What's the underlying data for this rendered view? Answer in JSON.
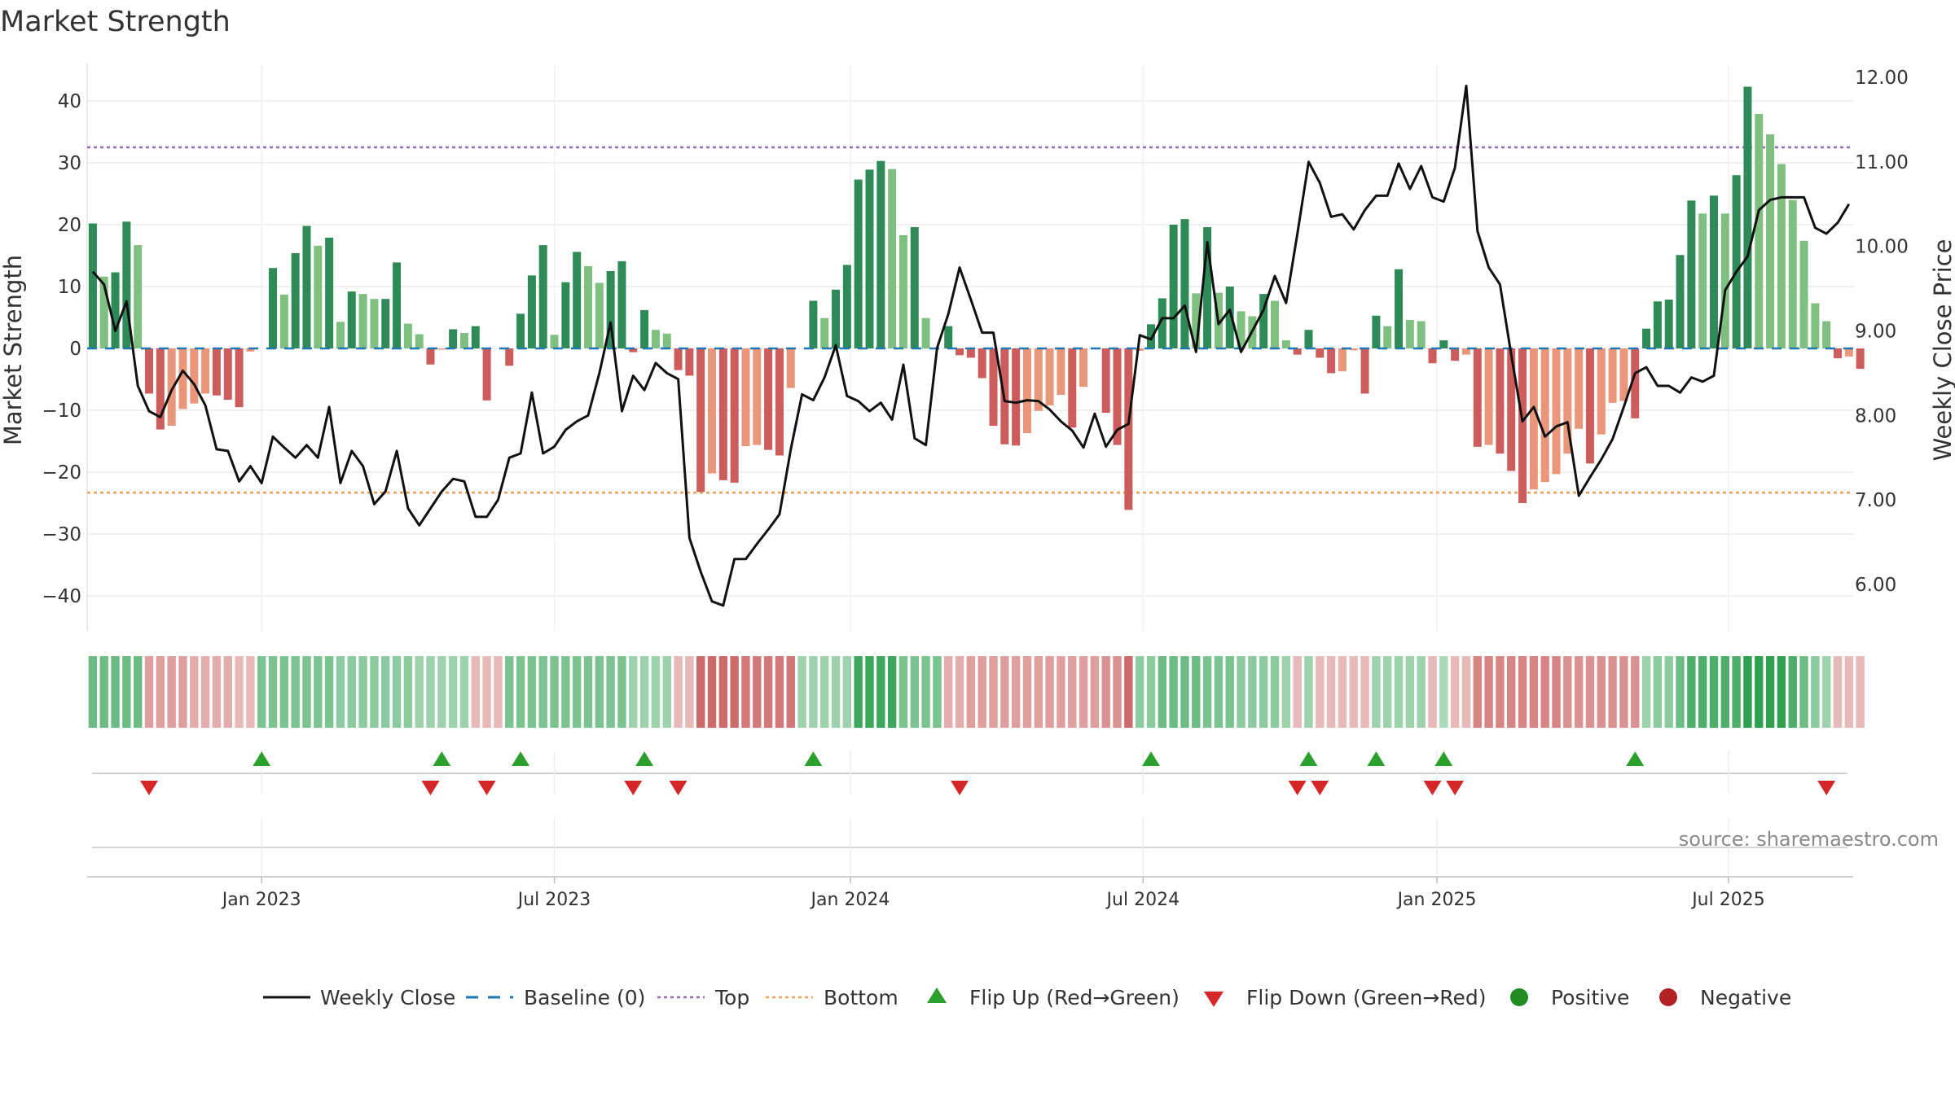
{
  "chart_data": {
    "type": "bar+line",
    "title": "Market Strength",
    "ylabel_left": "Market Strength",
    "ylabel_right": "Weekly Close Price",
    "ylim_left": [
      -46,
      47
    ],
    "ylim_right": [
      5.2,
      12.3
    ],
    "yticks_left": [
      "40",
      "30",
      "20",
      "10",
      "0",
      "−10",
      "−20",
      "−30",
      "−40"
    ],
    "yticks_left_values": [
      40,
      30,
      20,
      10,
      0,
      -10,
      -20,
      -30,
      -40
    ],
    "yticks_right": [
      "12.00",
      "11.00",
      "10.00",
      "9.00",
      "8.00",
      "7.00",
      "6.00"
    ],
    "yticks_right_values": [
      12,
      11,
      10,
      9,
      8,
      7,
      6
    ],
    "xticks": [
      "Jan 2023",
      "Jul 2023",
      "Jan 2024",
      "Jul 2024",
      "Jan 2025",
      "Jul 2025"
    ],
    "xticks_week_index": [
      15,
      41,
      67.3,
      93.3,
      119.4,
      145.3
    ],
    "top_level": 32.5,
    "bottom_level": -23.3,
    "baseline": 0,
    "strength": [
      20.2,
      11.6,
      12.3,
      20.5,
      16.7,
      -7.3,
      -13.1,
      -12.5,
      -9.8,
      -8.9,
      -7.3,
      -7.6,
      -8.3,
      -9.5,
      -0.5,
      0,
      13.0,
      8.7,
      15.4,
      19.8,
      16.6,
      17.9,
      4.3,
      9.2,
      8.8,
      8.0,
      8.0,
      13.9,
      4.0,
      2.3,
      -2.6,
      -0.2,
      3.1,
      2.5,
      3.6,
      -8.4,
      0,
      -2.8,
      5.6,
      11.8,
      16.7,
      2.2,
      10.7,
      15.6,
      13.3,
      10.6,
      12.5,
      14.1,
      -0.6,
      6.2,
      3.0,
      2.4,
      -3.5,
      -4.4,
      -23.2,
      -20.2,
      -21.3,
      -21.7,
      -15.8,
      -15.6,
      -16.4,
      -17.3,
      -6.4,
      0,
      7.7,
      4.9,
      9.5,
      13.5,
      27.3,
      28.9,
      30.3,
      29.0,
      18.3,
      19.6,
      4.9,
      0,
      3.6,
      -1.1,
      -1.5,
      -4.8,
      -12.5,
      -15.5,
      -15.7,
      -13.7,
      -10.1,
      -9.2,
      -7.5,
      -12.8,
      -6.2,
      0,
      -10.4,
      -15.6,
      -26.1,
      -0.4,
      3.9,
      8.1,
      20.0,
      20.9,
      8.9,
      19.6,
      9.0,
      10.0,
      6.0,
      5.2,
      8.8,
      7.7,
      1.3,
      -1.0,
      3.0,
      -1.5,
      -4.0,
      -3.7,
      -0.3,
      -7.3,
      5.3,
      3.6,
      12.8,
      4.6,
      4.4,
      -2.4,
      1.3,
      -2.0,
      -1.0,
      -15.9,
      -15.6,
      -17.0,
      -19.8,
      -25.0,
      -22.8,
      -21.6,
      -20.3,
      -17.0,
      -13.0,
      -18.6,
      -13.9,
      -8.8,
      -8.5,
      -11.3,
      3.2,
      7.6,
      7.9,
      15.1,
      23.9,
      21.8,
      24.7,
      21.8,
      28.0,
      42.3,
      37.9,
      34.6,
      29.8,
      24.0,
      17.4,
      7.3,
      4.4,
      -1.6,
      -1.3,
      -3.3
    ],
    "price": [
      9.7,
      9.55,
      9.0,
      9.35,
      8.35,
      8.05,
      7.98,
      8.3,
      8.53,
      8.37,
      8.12,
      7.6,
      7.58,
      7.22,
      7.4,
      7.2,
      7.75,
      7.62,
      7.5,
      7.65,
      7.5,
      8.1,
      7.2,
      7.58,
      7.4,
      6.95,
      7.1,
      7.58,
      6.9,
      6.7,
      6.9,
      7.1,
      7.25,
      7.22,
      6.8,
      6.8,
      7.0,
      7.5,
      7.55,
      8.27,
      7.55,
      7.63,
      7.83,
      7.93,
      8.0,
      8.5,
      9.1,
      8.05,
      8.47,
      8.3,
      8.62,
      8.5,
      8.43,
      6.55,
      6.15,
      5.8,
      5.75,
      6.3,
      6.3,
      6.48,
      6.65,
      6.83,
      7.6,
      8.25,
      8.18,
      8.45,
      8.83,
      8.23,
      8.17,
      8.05,
      8.15,
      7.95,
      8.6,
      7.73,
      7.65,
      8.8,
      9.2,
      9.75,
      9.37,
      8.98,
      8.98,
      8.17,
      8.15,
      8.18,
      8.17,
      8.07,
      7.93,
      7.82,
      7.62,
      8.02,
      7.63,
      7.83,
      7.9,
      8.95,
      8.9,
      9.15,
      9.15,
      9.3,
      8.75,
      10.05,
      9.08,
      9.25,
      8.75,
      9.0,
      9.25,
      9.65,
      9.33,
      10.15,
      11.0,
      10.75,
      10.35,
      10.38,
      10.2,
      10.43,
      10.6,
      10.6,
      10.98,
      10.68,
      10.95,
      10.58,
      10.53,
      10.93,
      11.9,
      10.18,
      9.75,
      9.55,
      8.72,
      7.93,
      8.1,
      7.75,
      7.87,
      7.92,
      7.05,
      7.27,
      7.48,
      7.72,
      8.1,
      8.5,
      8.57,
      8.35,
      8.35,
      8.27,
      8.45,
      8.4,
      8.47,
      9.48,
      9.7,
      9.88,
      10.43,
      10.55,
      10.58,
      10.58,
      10.58,
      10.22,
      10.15,
      10.28,
      10.5
    ],
    "colorbar_strength": [
      0.6,
      0.6,
      0.6,
      0.6,
      0.6,
      -0.4,
      -0.4,
      -0.4,
      -0.4,
      -0.3,
      -0.3,
      -0.3,
      -0.3,
      -0.2,
      -0.2,
      0.5,
      0.5,
      0.5,
      0.5,
      0.5,
      0.5,
      0.5,
      0.4,
      0.4,
      0.4,
      0.4,
      0.4,
      0.4,
      0.4,
      0.3,
      0.3,
      0.3,
      0.3,
      0.3,
      -0.2,
      -0.2,
      -0.2,
      0.5,
      0.5,
      0.5,
      0.5,
      0.5,
      0.5,
      0.5,
      0.5,
      0.5,
      0.5,
      0.5,
      0.3,
      0.3,
      0.3,
      0.3,
      -0.2,
      -0.2,
      -0.8,
      -0.8,
      -0.8,
      -0.8,
      -0.7,
      -0.7,
      -0.7,
      -0.7,
      -0.7,
      0.3,
      0.3,
      0.3,
      0.3,
      0.3,
      0.9,
      0.9,
      0.9,
      0.9,
      0.5,
      0.5,
      0.5,
      0.5,
      -0.3,
      -0.3,
      -0.4,
      -0.4,
      -0.4,
      -0.4,
      -0.4,
      -0.4,
      -0.4,
      -0.4,
      -0.4,
      -0.4,
      -0.4,
      -0.4,
      -0.5,
      -0.5,
      -0.8,
      0.4,
      0.4,
      0.6,
      0.6,
      0.6,
      0.6,
      0.5,
      0.5,
      0.5,
      0.4,
      0.4,
      0.4,
      0.4,
      0.3,
      -0.2,
      0.3,
      -0.2,
      -0.2,
      -0.2,
      -0.2,
      -0.2,
      0.3,
      0.3,
      0.3,
      0.3,
      0.3,
      -0.2,
      0.2,
      -0.2,
      -0.2,
      -0.6,
      -0.6,
      -0.6,
      -0.6,
      -0.6,
      -0.6,
      -0.6,
      -0.6,
      -0.5,
      -0.5,
      -0.5,
      -0.5,
      -0.5,
      -0.5,
      -0.5,
      0.3,
      0.4,
      0.4,
      0.6,
      0.8,
      0.8,
      0.8,
      0.8,
      0.8,
      1.0,
      1.0,
      1.0,
      1.0,
      0.8,
      0.6,
      0.4,
      0.3,
      -0.2,
      -0.2,
      -0.2
    ],
    "flip_up_weeks": [
      15,
      31,
      38,
      49,
      64,
      94,
      108,
      114,
      120,
      137
    ],
    "flip_down_weeks": [
      5,
      30,
      35,
      48,
      52,
      77,
      107,
      109,
      119,
      121,
      154
    ],
    "colors": {
      "strong_green": "#2e8b57",
      "light_green": "#7fbf7f",
      "strong_red": "#cd5c5c",
      "light_red": "#e9967a",
      "price_line": "#111111",
      "baseline": "#1f77b4",
      "top_line": "#9467bd",
      "bottom_line": "#f29b55",
      "flip_up": "#2ca02c",
      "flip_down": "#d62728",
      "positive": "#228b22",
      "negative": "#b22222"
    },
    "legend": [
      {
        "label": "Weekly Close",
        "kind": "line"
      },
      {
        "label": "Baseline (0)",
        "kind": "dash"
      },
      {
        "label": "Top",
        "kind": "dot-purple"
      },
      {
        "label": "Bottom",
        "kind": "dot-orange"
      },
      {
        "label": "Flip Up (Red→Green)",
        "kind": "tri-up"
      },
      {
        "label": "Flip Down (Green→Red)",
        "kind": "tri-down"
      },
      {
        "label": "Positive",
        "kind": "dot-green"
      },
      {
        "label": "Negative",
        "kind": "dot-red"
      }
    ],
    "source": "source: sharemaestro.com"
  }
}
